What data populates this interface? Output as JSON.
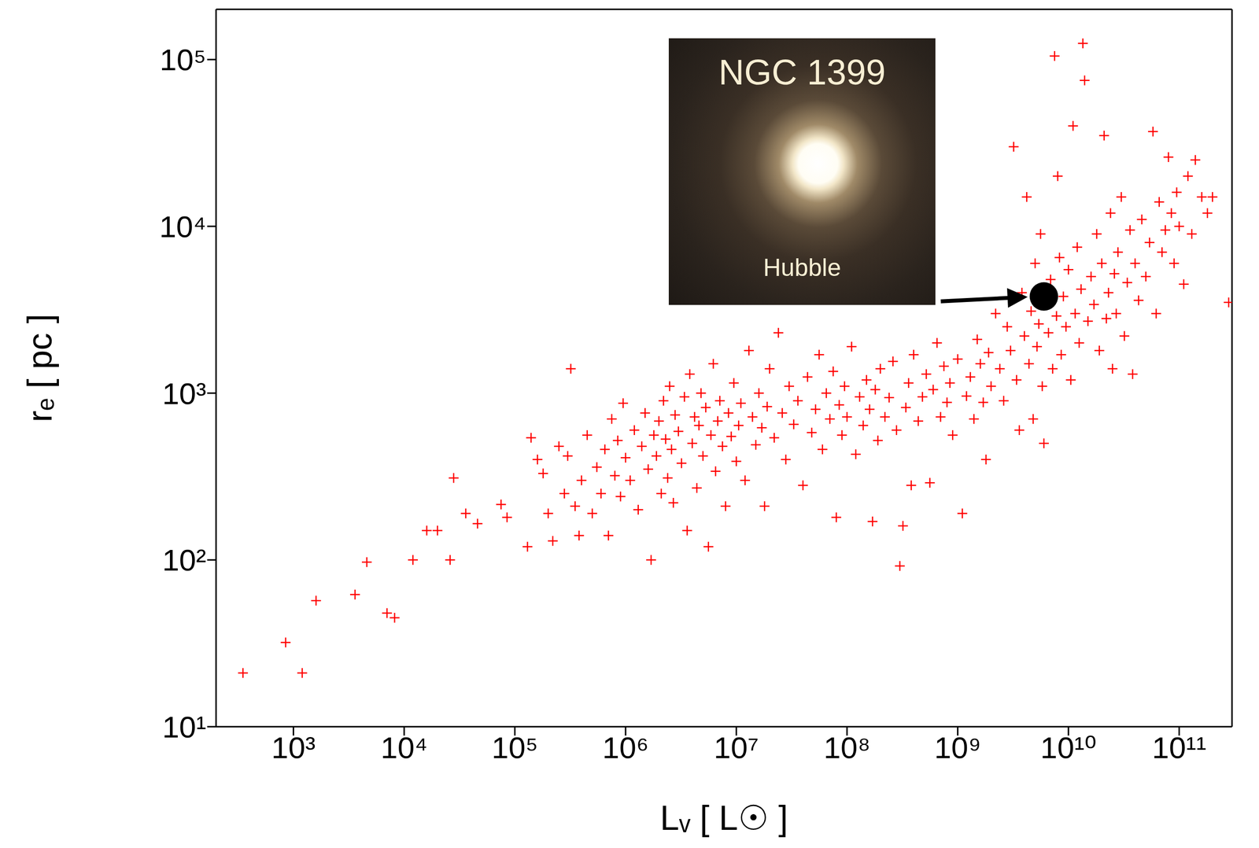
{
  "chart_data": {
    "type": "scatter",
    "log": true,
    "grid": false,
    "x_label": "Lᵥ [ L☉ ]",
    "y_label": "rₑ [ pc ]",
    "xlim": [
      200,
      300000000000
    ],
    "ylim": [
      10,
      200000
    ],
    "xticks": [
      {
        "value": 1000,
        "label": "10³"
      },
      {
        "value": 10000,
        "label": "10⁴"
      },
      {
        "value": 100000,
        "label": "10⁵"
      },
      {
        "value": 1000000,
        "label": "10⁶"
      },
      {
        "value": 10000000,
        "label": "10⁷"
      },
      {
        "value": 100000000,
        "label": "10⁸"
      },
      {
        "value": 1000000000,
        "label": "10⁹"
      },
      {
        "value": 10000000000,
        "label": "10¹⁰"
      },
      {
        "value": 100000000000,
        "label": "10¹¹"
      }
    ],
    "yticks": [
      {
        "value": 10,
        "label": "10¹"
      },
      {
        "value": 100,
        "label": "10²"
      },
      {
        "value": 1000,
        "label": "10³"
      },
      {
        "value": 10000,
        "label": "10⁴"
      },
      {
        "value": 100000,
        "label": "10⁵"
      }
    ],
    "inset": {
      "title": "NGC 1399",
      "credit": "Hubble"
    },
    "series": [
      {
        "color": "#ff0000",
        "marker": "plus",
        "x": [
          350.0,
          850.0,
          1200.0,
          1600.0,
          3600.0,
          4600.0,
          7000.0,
          8200.0,
          12000.0,
          16000.0,
          20000.0,
          26000.0,
          28000.0,
          36000.0,
          46000.0,
          75000.0,
          85000.0,
          130000.0,
          140000.0,
          160000.0,
          180000.0,
          200000.0,
          220000.0,
          250000.0,
          280000.0,
          300000.0,
          320000.0,
          350000.0,
          380000.0,
          400000.0,
          450000.0,
          500000.0,
          550000.0,
          600000.0,
          650000.0,
          700000.0,
          750000.0,
          800000.0,
          850000.0,
          900000.0,
          950000.0,
          1000000.0,
          1100000.0,
          1200000.0,
          1300000.0,
          1400000.0,
          1500000.0,
          1600000.0,
          1700000.0,
          1800000.0,
          1900000.0,
          2000000.0,
          2100000.0,
          2200000.0,
          2300000.0,
          2400000.0,
          2500000.0,
          2600000.0,
          2700000.0,
          2800000.0,
          3000000.0,
          3200000.0,
          3400000.0,
          3600000.0,
          3800000.0,
          4000000.0,
          4200000.0,
          4400000.0,
          4600000.0,
          4800000.0,
          5000000.0,
          5300000.0,
          5600000.0,
          5900000.0,
          6200000.0,
          6500000.0,
          6800000.0,
          7100000.0,
          7500000.0,
          8000000.0,
          8500000.0,
          9000000.0,
          9500000.0,
          10000000.0,
          10500000.0,
          11000000.0,
          12000000.0,
          13000000.0,
          14000000.0,
          15000000.0,
          16000000.0,
          17000000.0,
          18000000.0,
          19000000.0,
          20000000.0,
          22000000.0,
          24000000.0,
          26000000.0,
          28000000.0,
          30000000.0,
          33000000.0,
          36000000.0,
          40000000.0,
          44000000.0,
          48000000.0,
          52000000.0,
          56000000.0,
          60000000.0,
          65000000.0,
          70000000.0,
          75000000.0,
          80000000.0,
          85000000.0,
          90000000.0,
          95000000.0,
          100000000.0,
          110000000.0,
          120000000.0,
          130000000.0,
          140000000.0,
          150000000.0,
          160000000.0,
          170000000.0,
          180000000.0,
          190000000.0,
          200000000.0,
          220000000.0,
          240000000.0,
          260000000.0,
          280000000.0,
          300000000.0,
          320000000.0,
          340000000.0,
          360000000.0,
          380000000.0,
          400000000.0,
          440000000.0,
          480000000.0,
          520000000.0,
          560000000.0,
          600000000.0,
          650000000.0,
          700000000.0,
          750000000.0,
          800000000.0,
          850000000.0,
          900000000.0,
          1000000000.0,
          1100000000.0,
          1200000000.0,
          1300000000.0,
          1400000000.0,
          1500000000.0,
          1600000000.0,
          1700000000.0,
          1800000000.0,
          1900000000.0,
          2000000000.0,
          2200000000.0,
          2400000000.0,
          2600000000.0,
          2800000000.0,
          3000000000.0,
          3200000000.0,
          3400000000.0,
          3600000000.0,
          3800000000.0,
          4000000000.0,
          4200000000.0,
          4400000000.0,
          4600000000.0,
          4800000000.0,
          5000000000.0,
          5200000000.0,
          5400000000.0,
          5600000000.0,
          5800000000.0,
          6000000000.0,
          6300000000.0,
          6600000000.0,
          6900000000.0,
          7200000000.0,
          7500000000.0,
          7800000000.0,
          8000000000.0,
          8300000000.0,
          8600000000.0,
          9000000000.0,
          9500000000.0,
          10000000000.0,
          10500000000.0,
          11000000000.0,
          11500000000.0,
          12000000000.0,
          12500000000.0,
          13000000000.0,
          13500000000.0,
          14000000000.0,
          15000000000.0,
          16000000000.0,
          17000000000.0,
          18000000000.0,
          19000000000.0,
          20000000000.0,
          21000000000.0,
          22000000000.0,
          23000000000.0,
          24000000000.0,
          25000000000.0,
          26000000000.0,
          27000000000.0,
          28000000000.0,
          30000000000.0,
          32000000000.0,
          34000000000.0,
          36000000000.0,
          38000000000.0,
          40000000000.0,
          43000000000.0,
          46000000000.0,
          50000000000.0,
          54000000000.0,
          58000000000.0,
          62000000000.0,
          66000000000.0,
          70000000000.0,
          75000000000.0,
          80000000000.0,
          85000000000.0,
          90000000000.0,
          95000000000.0,
          100000000000.0,
          110000000000.0,
          120000000000.0,
          130000000000.0,
          140000000000.0,
          160000000000.0,
          180000000000.0,
          200000000000.0,
          280000000000.0
        ],
        "y": [
          21,
          32,
          21,
          57,
          62,
          97,
          48,
          45,
          100,
          150,
          150,
          100,
          310,
          190,
          165,
          215,
          180,
          120,
          540,
          400,
          330,
          190,
          130,
          480,
          250,
          420,
          1400,
          210,
          140,
          300,
          560,
          190,
          360,
          250,
          460,
          140,
          700,
          320,
          520,
          240,
          870,
          410,
          300,
          600,
          200,
          480,
          760,
          350,
          100,
          560,
          420,
          680,
          250,
          900,
          530,
          310,
          1100,
          460,
          220,
          740,
          590,
          380,
          950,
          150,
          1300,
          500,
          720,
          270,
          640,
          1000,
          420,
          820,
          120,
          560,
          1500,
          340,
          680,
          900,
          480,
          210,
          760,
          550,
          1150,
          390,
          640,
          870,
          300,
          1800,
          720,
          490,
          1000,
          620,
          210,
          830,
          1400,
          540,
          2300,
          760,
          400,
          1100,
          650,
          900,
          280,
          1250,
          580,
          800,
          1700,
          460,
          1000,
          700,
          1350,
          180,
          850,
          560,
          1100,
          720,
          1900,
          430,
          950,
          640,
          1200,
          800,
          170,
          1050,
          520,
          1400,
          720,
          940,
          1550,
          600,
          92,
          160,
          820,
          1150,
          280,
          1700,
          680,
          950,
          1300,
          290,
          1050,
          2000,
          720,
          1450,
          880,
          1150,
          560,
          1600,
          190,
          960,
          1250,
          700,
          2100,
          1500,
          880,
          400,
          1750,
          1100,
          3000,
          1400,
          900,
          2500,
          1800,
          30000,
          1200,
          600,
          4000,
          2200,
          15000,
          1500,
          3100,
          700,
          6000,
          1900,
          2600,
          9000,
          1100,
          500,
          3500,
          2300,
          4800,
          1400,
          105000,
          2900,
          20000,
          6500,
          1700,
          3800,
          2500,
          5500,
          1200,
          40000,
          3000,
          7500,
          2000,
          4200,
          125000,
          75000,
          2700,
          5000,
          3400,
          9000,
          1800,
          6000,
          35000,
          2800,
          4000,
          12000,
          1400,
          5200,
          3000,
          7000,
          15000,
          2200,
          4600,
          9500,
          1300,
          6000,
          3600,
          11000,
          5000,
          8000,
          37000,
          3000,
          14000,
          7000,
          9500,
          26000,
          12000,
          6000,
          16000,
          10000,
          4500,
          20000,
          9000,
          25000,
          15000,
          12000,
          15000,
          3500
        ]
      },
      {
        "color": "#000000",
        "marker": "circle",
        "x": [
          6000000000.0
        ],
        "y": [
          3800
        ]
      }
    ]
  }
}
